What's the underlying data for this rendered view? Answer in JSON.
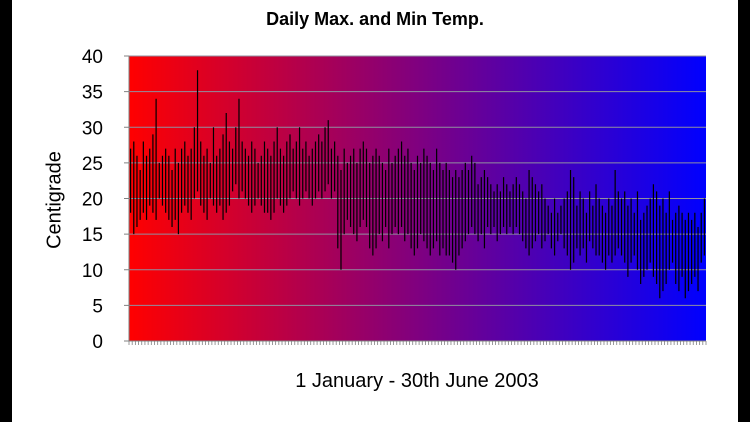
{
  "chart_data": {
    "type": "bar",
    "subtype": "floating-range",
    "title": "Daily Max. and Min Temp.",
    "xlabel": "1 January - 30th June 2003",
    "ylabel": "Centigrade",
    "ylim": [
      0,
      40
    ],
    "yticks": [
      "0",
      "5",
      "10",
      "15",
      "20",
      "25",
      "30",
      "35",
      "40"
    ],
    "grid": true,
    "legend": "none",
    "background_gradient": [
      "#ff0000",
      "#0000ff"
    ],
    "bar_color": "#000000",
    "x_count": 181,
    "series": [
      {
        "values_min": [
          18,
          15,
          16,
          17,
          18,
          17,
          19,
          18,
          17,
          20,
          19,
          18,
          17,
          16,
          17,
          15,
          18,
          19,
          18,
          17,
          20,
          21,
          19,
          18,
          17,
          20,
          19,
          18,
          19,
          17,
          18,
          19,
          21,
          22,
          20,
          21,
          20,
          19,
          18,
          19,
          20,
          19,
          18,
          18,
          17,
          18,
          20,
          19,
          18,
          19,
          20,
          21,
          20,
          19,
          20,
          21,
          20,
          19,
          20,
          21,
          20,
          21,
          22,
          20,
          21,
          13,
          10,
          15,
          17,
          16,
          15,
          14,
          16,
          17,
          16,
          13,
          12,
          13,
          15,
          14,
          16,
          13,
          15,
          16,
          15,
          16,
          14,
          15,
          13,
          12,
          13,
          15,
          14,
          13,
          12,
          13,
          14,
          12,
          13,
          12,
          12,
          11,
          10,
          12,
          13,
          14,
          15,
          16,
          15,
          14,
          15,
          13,
          16,
          15,
          16,
          14,
          15,
          16,
          15,
          16,
          15,
          16,
          15,
          14,
          13,
          12,
          13,
          14,
          15,
          13,
          14,
          15,
          13,
          12,
          14,
          15,
          13,
          12,
          10,
          11,
          13,
          12,
          13,
          11,
          14,
          13,
          12,
          12,
          11,
          10,
          12,
          11,
          12,
          13,
          12,
          11,
          9,
          11,
          12,
          10,
          8,
          9,
          10,
          11,
          9,
          8,
          6,
          7,
          8,
          10,
          11,
          8,
          7,
          9,
          6,
          7,
          8,
          9,
          7,
          11,
          12
        ],
        "values_max": [
          27,
          28,
          26,
          24,
          28,
          26,
          27,
          29,
          34,
          25,
          26,
          27,
          26,
          24,
          27,
          25,
          27,
          28,
          26,
          27,
          30,
          38,
          28,
          26,
          27,
          25,
          30,
          26,
          27,
          29,
          32,
          28,
          27,
          30,
          34,
          28,
          27,
          26,
          28,
          27,
          25,
          26,
          28,
          27,
          26,
          28,
          30,
          27,
          26,
          28,
          29,
          27,
          28,
          30,
          27,
          28,
          26,
          27,
          28,
          29,
          28,
          30,
          31,
          27,
          28,
          26,
          24,
          27,
          25,
          26,
          27,
          25,
          27,
          28,
          27,
          25,
          26,
          27,
          26,
          25,
          24,
          27,
          25,
          26,
          27,
          28,
          26,
          27,
          25,
          24,
          26,
          25,
          27,
          26,
          25,
          24,
          27,
          25,
          24,
          25,
          24,
          23,
          24,
          23,
          24,
          25,
          24,
          26,
          25,
          22,
          23,
          24,
          23,
          22,
          21,
          22,
          21,
          23,
          22,
          21,
          22,
          23,
          22,
          21,
          20,
          24,
          23,
          22,
          21,
          22,
          20,
          19,
          18,
          20,
          18,
          19,
          20,
          21,
          24,
          23,
          19,
          21,
          20,
          18,
          21,
          19,
          22,
          20,
          19,
          18,
          20,
          19,
          24,
          21,
          20,
          21,
          19,
          20,
          18,
          21,
          17,
          18,
          19,
          20,
          22,
          21,
          19,
          20,
          18,
          21,
          17,
          18,
          19,
          18,
          17,
          18,
          17,
          18,
          16,
          18,
          20
        ]
      }
    ]
  }
}
